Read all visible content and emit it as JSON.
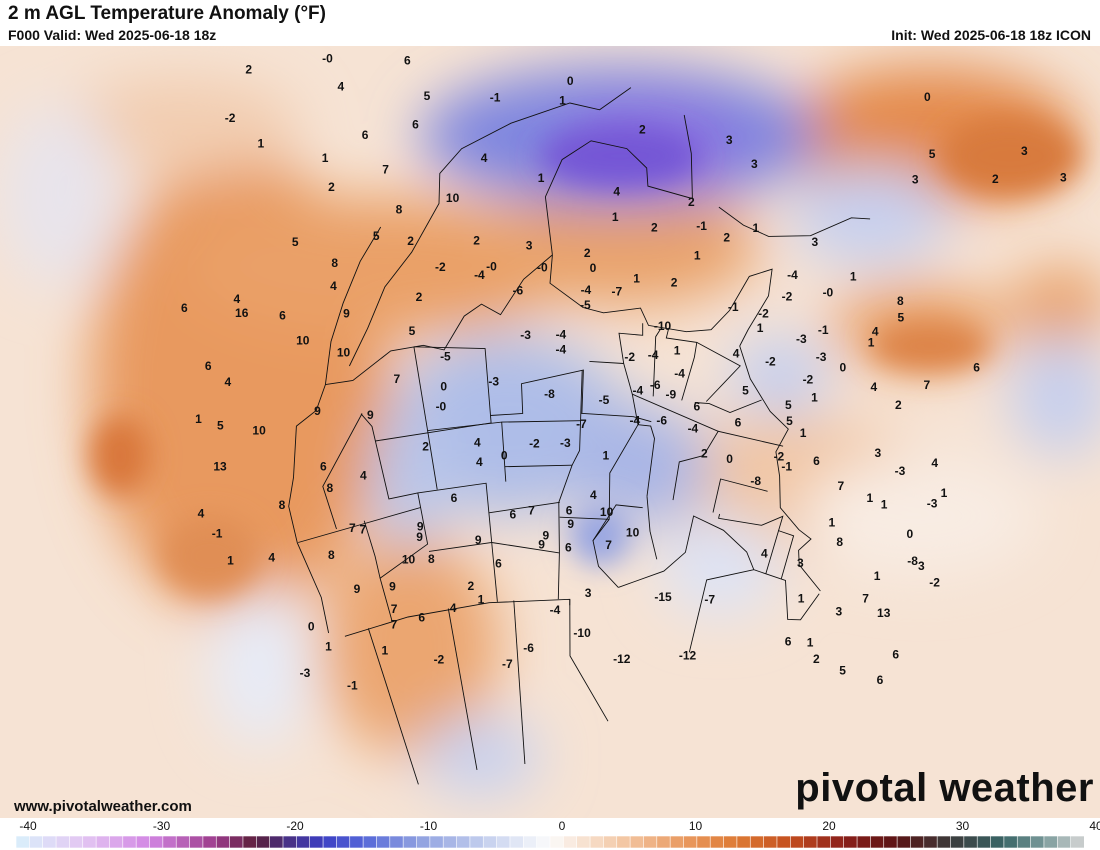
{
  "header": {
    "title": "2 m AGL Temperature Anomaly (°F)",
    "valid": "F000 Valid: Wed 2025-06-18 18z",
    "init": "Init: Wed 2025-06-18 18z ICON"
  },
  "footer": {
    "url": "www.pivotalweather.com",
    "brand": "pivotal weather"
  },
  "colorbar": {
    "ticks": [
      "-40",
      "-30",
      "-20",
      "-10",
      "0",
      "10",
      "20",
      "30",
      "40"
    ],
    "min": -40,
    "max": 40
  },
  "map_labels": [
    {
      "v": "-1",
      "lon": -124.5,
      "lat": 52.5
    },
    {
      "v": "-3",
      "lon": -129.5,
      "lat": 50.5
    },
    {
      "v": "1",
      "lon": -125.5,
      "lat": 49.5
    },
    {
      "v": "0",
      "lon": -126.5,
      "lat": 47.8
    },
    {
      "v": "1",
      "lon": -119,
      "lat": 51
    },
    {
      "v": "-2",
      "lon": -112.5,
      "lat": 52.5
    },
    {
      "v": "-7",
      "lon": -103.5,
      "lat": 53.5
    },
    {
      "v": "-6",
      "lon": -100.5,
      "lat": 52.5
    },
    {
      "v": "-10",
      "lon": -93.5,
      "lat": 51.5
    },
    {
      "v": "-12",
      "lon": -88,
      "lat": 53
    },
    {
      "v": "-12",
      "lon": -79.5,
      "lat": 52
    },
    {
      "v": "-15",
      "lon": -84,
      "lat": 48.5
    },
    {
      "v": "-7",
      "lon": -78.5,
      "lat": 48
    },
    {
      "v": "-4",
      "lon": -97,
      "lat": 50
    },
    {
      "v": "3",
      "lon": -93,
      "lat": 48.8
    },
    {
      "v": "7",
      "lon": -117,
      "lat": 49.5
    },
    {
      "v": "6",
      "lon": -113.5,
      "lat": 49.5
    },
    {
      "v": "4",
      "lon": -109.5,
      "lat": 49.3
    },
    {
      "v": "1",
      "lon": -106,
      "lat": 49
    },
    {
      "v": "7",
      "lon": -116.5,
      "lat": 48.5
    },
    {
      "v": "2",
      "lon": -107,
      "lat": 48
    },
    {
      "v": "9",
      "lon": -120,
      "lat": 46.5
    },
    {
      "v": "9",
      "lon": -116,
      "lat": 47
    },
    {
      "v": "10",
      "lon": -113.5,
      "lat": 45.5
    },
    {
      "v": "8",
      "lon": -111,
      "lat": 45.8
    },
    {
      "v": "6",
      "lon": -103.5,
      "lat": 46.7
    },
    {
      "v": "9",
      "lon": -98.5,
      "lat": 45.6
    },
    {
      "v": "6",
      "lon": -95.5,
      "lat": 45.8
    },
    {
      "v": "7",
      "lon": -91,
      "lat": 45.5
    },
    {
      "v": "6",
      "lon": -68,
      "lat": 49
    },
    {
      "v": "2",
      "lon": -64,
      "lat": 49.3
    },
    {
      "v": "5",
      "lon": -60.5,
      "lat": 49.2
    },
    {
      "v": "6",
      "lon": -56,
      "lat": 48.5
    },
    {
      "v": "1",
      "lon": -65.5,
      "lat": 48.5
    },
    {
      "v": "1",
      "lon": -68.5,
      "lat": 46
    },
    {
      "v": "3",
      "lon": -64,
      "lat": 45.8
    },
    {
      "v": "6",
      "lon": -56,
      "lat": 46.5
    },
    {
      "v": "4",
      "lon": -74,
      "lat": 44
    },
    {
      "v": "3",
      "lon": -70,
      "lat": 43.8
    },
    {
      "v": "13",
      "lon": -59.5,
      "lat": 44.5
    },
    {
      "v": "7",
      "lon": -62,
      "lat": 44.2
    },
    {
      "v": "1",
      "lon": -62,
      "lat": 42.5
    },
    {
      "v": "-8",
      "lon": -59.5,
      "lat": 40.5
    },
    {
      "v": "-2",
      "lon": -56.5,
      "lat": 41
    },
    {
      "v": "0",
      "lon": -61,
      "lat": 39
    },
    {
      "v": "8",
      "lon": -121.5,
      "lat": 43.8
    },
    {
      "v": "4",
      "lon": -127.5,
      "lat": 42.5
    },
    {
      "v": "7",
      "lon": -118.5,
      "lat": 42.5
    },
    {
      "v": "7",
      "lon": -117.5,
      "lat": 42.8
    },
    {
      "v": "9",
      "lon": -111.8,
      "lat": 44.2
    },
    {
      "v": "9",
      "lon": -105.5,
      "lat": 45
    },
    {
      "v": "9",
      "lon": -98,
      "lat": 45
    },
    {
      "v": "9",
      "lon": -95.3,
      "lat": 44.2
    },
    {
      "v": "6",
      "lon": -101.5,
      "lat": 43.5
    },
    {
      "v": "7",
      "lon": -99.5,
      "lat": 43.3
    },
    {
      "v": "6",
      "lon": -95.5,
      "lat": 43.3
    },
    {
      "v": "9",
      "lon": -111.5,
      "lat": 43.5
    },
    {
      "v": "6",
      "lon": -107.5,
      "lat": 42
    },
    {
      "v": "4",
      "lon": -93,
      "lat": 42.2
    },
    {
      "v": "10",
      "lon": -88.5,
      "lat": 44.5
    },
    {
      "v": "10",
      "lon": -91.5,
      "lat": 43.3
    },
    {
      "v": "1",
      "lon": -131.5,
      "lat": 41.5
    },
    {
      "v": "-1",
      "lon": -131.5,
      "lat": 39.5
    },
    {
      "v": "8",
      "lon": -124.5,
      "lat": 39.5
    },
    {
      "v": "8",
      "lon": -119.5,
      "lat": 39.5
    },
    {
      "v": "4",
      "lon": -116,
      "lat": 39.3
    },
    {
      "v": "4",
      "lon": -104.5,
      "lat": 39.8
    },
    {
      "v": "0",
      "lon": -102,
      "lat": 39.5
    },
    {
      "v": "-2",
      "lon": -99,
      "lat": 38.8
    },
    {
      "v": "-3",
      "lon": -96,
      "lat": 38.8
    },
    {
      "v": "1",
      "lon": -92,
      "lat": 39.5
    },
    {
      "v": "4",
      "lon": -104.5,
      "lat": 38.5
    },
    {
      "v": "2",
      "lon": -109.5,
      "lat": 38.3
    },
    {
      "v": "6",
      "lon": -119.5,
      "lat": 38
    },
    {
      "v": "4",
      "lon": -132,
      "lat": 37.8
    },
    {
      "v": "-7",
      "lon": -94.5,
      "lat": 37.5
    },
    {
      "v": "-4",
      "lon": -89.5,
      "lat": 37
    },
    {
      "v": "-6",
      "lon": -87,
      "lat": 36.8
    },
    {
      "v": "-4",
      "lon": -84,
      "lat": 37
    },
    {
      "v": "2",
      "lon": -82.5,
      "lat": 38.5
    },
    {
      "v": "0",
      "lon": -80,
      "lat": 38.5
    },
    {
      "v": "-8",
      "lon": -77,
      "lat": 39.5
    },
    {
      "v": "-2",
      "lon": -75.5,
      "lat": 37.5
    },
    {
      "v": "-1",
      "lon": -74.5,
      "lat": 38
    },
    {
      "v": "6",
      "lon": -72,
      "lat": 37
    },
    {
      "v": "7",
      "lon": -69,
      "lat": 38
    },
    {
      "v": "1",
      "lon": -66,
      "lat": 38
    },
    {
      "v": "3",
      "lon": -58.5,
      "lat": 40.5
    },
    {
      "v": "8",
      "lon": -67,
      "lat": 41.5
    },
    {
      "v": "1",
      "lon": -64.5,
      "lat": 38
    },
    {
      "v": "1",
      "lon": -68.5,
      "lat": 40.5
    },
    {
      "v": "6",
      "lon": -80,
      "lat": 36
    },
    {
      "v": "5",
      "lon": -75.5,
      "lat": 35
    },
    {
      "v": "1",
      "lon": -74,
      "lat": 35.5
    },
    {
      "v": "3",
      "lon": -67,
      "lat": 35
    },
    {
      "v": "-3",
      "lon": -64.5,
      "lat": 35.5
    },
    {
      "v": "1",
      "lon": -60,
      "lat": 35.5
    },
    {
      "v": "-3",
      "lon": -60.5,
      "lat": 36.5
    },
    {
      "v": "6",
      "lon": -84,
      "lat": 35.5
    },
    {
      "v": "4",
      "lon": -62,
      "lat": 34
    },
    {
      "v": "-8",
      "lon": -97.5,
      "lat": 35.5
    },
    {
      "v": "-5",
      "lon": -92.5,
      "lat": 35.8
    },
    {
      "v": "-4",
      "lon": -89.5,
      "lat": 35
    },
    {
      "v": "-6",
      "lon": -88,
      "lat": 34.5
    },
    {
      "v": "-9",
      "lon": -86.5,
      "lat": 35
    },
    {
      "v": "-4",
      "lon": -86,
      "lat": 33.5
    },
    {
      "v": "5",
      "lon": -80,
      "lat": 33.8
    },
    {
      "v": "5",
      "lon": -76,
      "lat": 34
    },
    {
      "v": "-0",
      "lon": -107.5,
      "lat": 35.8
    },
    {
      "v": "0",
      "lon": -107,
      "lat": 34.5
    },
    {
      "v": "-3",
      "lon": -102.5,
      "lat": 34.5
    },
    {
      "v": "7",
      "lon": -111,
      "lat": 33.5
    },
    {
      "v": "13",
      "lon": -128.5,
      "lat": 35.5
    },
    {
      "v": "10",
      "lon": -124,
      "lat": 34.3
    },
    {
      "v": "9",
      "lon": -118.5,
      "lat": 34.3
    },
    {
      "v": "9",
      "lon": -114,
      "lat": 35.5
    },
    {
      "v": "5",
      "lon": -127,
      "lat": 33
    },
    {
      "v": "4",
      "lon": -125,
      "lat": 30.5
    },
    {
      "v": "1",
      "lon": -128.5,
      "lat": 32
    },
    {
      "v": "-5",
      "lon": -106.5,
      "lat": 32.5
    },
    {
      "v": "-3",
      "lon": -99.5,
      "lat": 31.5
    },
    {
      "v": "-4",
      "lon": -96.5,
      "lat": 32.5
    },
    {
      "v": "-4",
      "lon": -96.5,
      "lat": 31.5
    },
    {
      "v": "-2",
      "lon": -90.5,
      "lat": 32.8
    },
    {
      "v": "-4",
      "lon": -88.5,
      "lat": 32.5
    },
    {
      "v": "1",
      "lon": -86.5,
      "lat": 32
    },
    {
      "v": "-10",
      "lon": -88,
      "lat": 30.5
    },
    {
      "v": "4",
      "lon": -81.5,
      "lat": 31.5
    },
    {
      "v": "-2",
      "lon": -78.5,
      "lat": 31.5
    },
    {
      "v": "-2",
      "lon": -75,
      "lat": 32
    },
    {
      "v": "1",
      "lon": -74,
      "lat": 33
    },
    {
      "v": "0",
      "lon": -72.5,
      "lat": 30.5
    },
    {
      "v": "4",
      "lon": -69.5,
      "lat": 31
    },
    {
      "v": "2",
      "lon": -67,
      "lat": 31.5
    },
    {
      "v": "10",
      "lon": -115,
      "lat": 31
    },
    {
      "v": "10",
      "lon": -118,
      "lat": 29.5
    },
    {
      "v": "5",
      "lon": -109,
      "lat": 30.5
    },
    {
      "v": "-6",
      "lon": -100,
      "lat": 28.5
    },
    {
      "v": "-4",
      "lon": -103,
      "lat": 27.3
    },
    {
      "v": "-5",
      "lon": -94.5,
      "lat": 29.5
    },
    {
      "v": "-4",
      "lon": -94.5,
      "lat": 28.5
    },
    {
      "v": "-7",
      "lon": -92,
      "lat": 28.5
    },
    {
      "v": "1",
      "lon": -80,
      "lat": 29.5
    },
    {
      "v": "-3",
      "lon": -76.5,
      "lat": 29.5
    },
    {
      "v": "-3",
      "lon": -74.5,
      "lat": 30.3
    },
    {
      "v": "1",
      "lon": -71,
      "lat": 28.3
    },
    {
      "v": "7",
      "lon": -65.5,
      "lat": 29.5
    },
    {
      "v": "6",
      "lon": -62.5,
      "lat": 27
    },
    {
      "v": "6",
      "lon": -126,
      "lat": 29
    },
    {
      "v": "16",
      "lon": -122,
      "lat": 26.5
    },
    {
      "v": "6",
      "lon": -119,
      "lat": 27.5
    },
    {
      "v": "9",
      "lon": -114,
      "lat": 28.5
    },
    {
      "v": "2",
      "lon": -108,
      "lat": 28.3
    },
    {
      "v": "4",
      "lon": -114.5,
      "lat": 26.5
    },
    {
      "v": "-2",
      "lon": -106,
      "lat": 26.5
    },
    {
      "v": "-0",
      "lon": -102,
      "lat": 26.8
    },
    {
      "v": "-0",
      "lon": -98,
      "lat": 27
    },
    {
      "v": "0",
      "lon": -94,
      "lat": 27
    },
    {
      "v": "1",
      "lon": -90.5,
      "lat": 27.5
    },
    {
      "v": "2",
      "lon": -87.5,
      "lat": 27.5
    },
    {
      "v": "-1",
      "lon": -82.5,
      "lat": 28.5
    },
    {
      "v": "-2",
      "lon": -80,
      "lat": 28.5
    },
    {
      "v": "-2",
      "lon": -78.5,
      "lat": 27
    },
    {
      "v": "-1",
      "lon": -75,
      "lat": 28.5
    },
    {
      "v": "4",
      "lon": -71,
      "lat": 27.5
    },
    {
      "v": "5",
      "lon": -69.5,
      "lat": 26
    },
    {
      "v": "6",
      "lon": -126,
      "lat": 24.8
    },
    {
      "v": "4",
      "lon": -122,
      "lat": 25.5
    },
    {
      "v": "8",
      "lon": -114,
      "lat": 25
    },
    {
      "v": "5",
      "lon": -110.5,
      "lat": 23.8
    },
    {
      "v": "2",
      "lon": -108,
      "lat": 24.5
    },
    {
      "v": "2",
      "lon": -103,
      "lat": 25
    },
    {
      "v": "3",
      "lon": -99,
      "lat": 25.5
    },
    {
      "v": "2",
      "lon": -94.5,
      "lat": 26
    },
    {
      "v": "1",
      "lon": -92.5,
      "lat": 23.5
    },
    {
      "v": "2",
      "lon": -89.5,
      "lat": 24
    },
    {
      "v": "1",
      "lon": -86,
      "lat": 25.5
    },
    {
      "v": "2",
      "lon": -84,
      "lat": 24
    },
    {
      "v": "-4",
      "lon": -78.5,
      "lat": 25.5
    },
    {
      "v": "-0",
      "lon": -75.5,
      "lat": 26
    },
    {
      "v": "1",
      "lon": -74,
      "lat": 24.5
    },
    {
      "v": "8",
      "lon": -70,
      "lat": 25
    },
    {
      "v": "5",
      "lon": -116.5,
      "lat": 23
    },
    {
      "v": "8",
      "lon": -108.5,
      "lat": 22.3
    },
    {
      "v": "10",
      "lon": -104.5,
      "lat": 22
    },
    {
      "v": "1",
      "lon": -98,
      "lat": 21
    },
    {
      "v": "4",
      "lon": -92.5,
      "lat": 21.8
    },
    {
      "v": "2",
      "lon": -87,
      "lat": 22
    },
    {
      "v": "-1",
      "lon": -86,
      "lat": 23.5
    },
    {
      "v": "1",
      "lon": -82,
      "lat": 23
    },
    {
      "v": "3",
      "lon": -77.5,
      "lat": 23
    },
    {
      "v": "2",
      "lon": -113,
      "lat": 20
    },
    {
      "v": "7",
      "lon": -109,
      "lat": 19.5
    },
    {
      "v": "4",
      "lon": -102,
      "lat": 19.5
    },
    {
      "v": "3",
      "lon": -83,
      "lat": 18.8
    },
    {
      "v": "2",
      "lon": -91,
      "lat": 17.5
    },
    {
      "v": "3",
      "lon": -85,
      "lat": 17.5
    },
    {
      "v": "1",
      "lon": -113,
      "lat": 18
    },
    {
      "v": "6",
      "lon": -110,
      "lat": 17
    },
    {
      "v": "6",
      "lon": -106.5,
      "lat": 16.8
    },
    {
      "v": "1",
      "lon": -117,
      "lat": 16
    },
    {
      "v": "5",
      "lon": -105.5,
      "lat": 15
    },
    {
      "v": "-1",
      "lon": -101,
      "lat": 15.5
    },
    {
      "v": "1",
      "lon": -96.5,
      "lat": 15.8
    },
    {
      "v": "0",
      "lon": -96,
      "lat": 14.5
    },
    {
      "v": "3",
      "lon": -72,
      "lat": 17
    },
    {
      "v": "5",
      "lon": -71.5,
      "lat": 15
    },
    {
      "v": "2",
      "lon": -67,
      "lat": 15
    },
    {
      "v": "-2",
      "lon": -118.5,
      "lat": 13.8
    },
    {
      "v": "4",
      "lon": -111,
      "lat": 13.5
    },
    {
      "v": "6",
      "lon": -106.5,
      "lat": 12.5
    },
    {
      "v": "-3",
      "lon": -99,
      "lat": 12
    },
    {
      "v": "-0",
      "lon": -111.5,
      "lat": 11.5
    },
    {
      "v": "-1",
      "lon": -103.5,
      "lat": 11.5
    },
    {
      "v": "-6",
      "lon": -97,
      "lat": 11
    },
    {
      "v": "2",
      "lon": -116.5,
      "lat": 11
    },
    {
      "v": "6",
      "lon": -100,
      "lat": 9.5
    },
    {
      "v": "3",
      "lon": -63,
      "lat": 13
    },
    {
      "v": "3",
      "lon": -66,
      "lat": 12.5
    },
    {
      "v": "0",
      "lon": -73,
      "lat": 11.5
    }
  ]
}
